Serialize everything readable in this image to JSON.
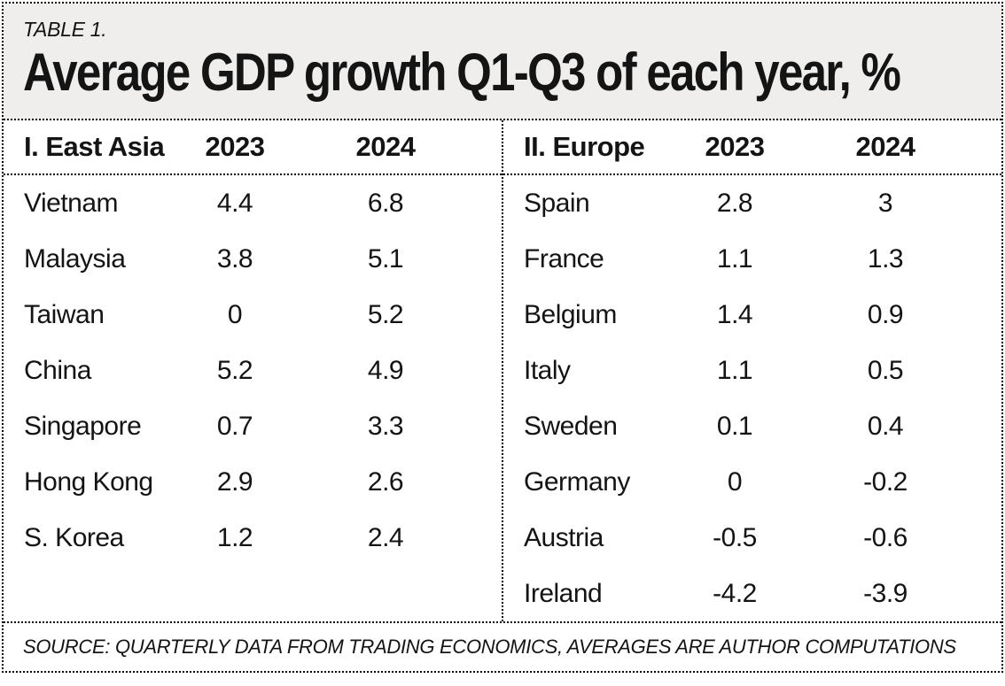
{
  "kicker": "TABLE 1.",
  "source": "SOURCE: QUARTERLY DATA FROM TRADING ECONOMICS, AVERAGES ARE AUTHOR COMPUTATIONS",
  "colors": {
    "band_bg": "#efeeec",
    "text": "#141414",
    "border": "#000000",
    "body_bg": "#ffffff"
  },
  "chart_data": {
    "type": "table",
    "title": "Average GDP growth Q1-Q3 of each year, %",
    "layout": {
      "two_panels": true,
      "divider": "dotted",
      "grid": "dotted-rules-outer-and-header-only"
    },
    "sections": [
      {
        "header": {
          "label": "I. East Asia",
          "col1": "2023",
          "col2": "2024"
        },
        "rows": [
          {
            "country": "Vietnam",
            "y2023": 4.4,
            "y2024": 6.8
          },
          {
            "country": "Malaysia",
            "y2023": 3.8,
            "y2024": 5.1
          },
          {
            "country": "Taiwan",
            "y2023": 0,
            "y2024": 5.2
          },
          {
            "country": "China",
            "y2023": 5.2,
            "y2024": 4.9
          },
          {
            "country": "Singapore",
            "y2023": 0.7,
            "y2024": 3.3
          },
          {
            "country": "Hong Kong",
            "y2023": 2.9,
            "y2024": 2.6
          },
          {
            "country": "S. Korea",
            "y2023": 1.2,
            "y2024": 2.4
          }
        ]
      },
      {
        "header": {
          "label": "II. Europe",
          "col1": "2023",
          "col2": "2024"
        },
        "rows": [
          {
            "country": "Spain",
            "y2023": 2.8,
            "y2024": 3
          },
          {
            "country": "France",
            "y2023": 1.1,
            "y2024": 1.3
          },
          {
            "country": "Belgium",
            "y2023": 1.4,
            "y2024": 0.9
          },
          {
            "country": "Italy",
            "y2023": 1.1,
            "y2024": 0.5
          },
          {
            "country": "Sweden",
            "y2023": 0.1,
            "y2024": 0.4
          },
          {
            "country": "Germany",
            "y2023": 0,
            "y2024": -0.2
          },
          {
            "country": "Austria",
            "y2023": -0.5,
            "y2024": -0.6
          },
          {
            "country": "Ireland",
            "y2023": -4.2,
            "y2024": -3.9
          }
        ]
      }
    ]
  }
}
